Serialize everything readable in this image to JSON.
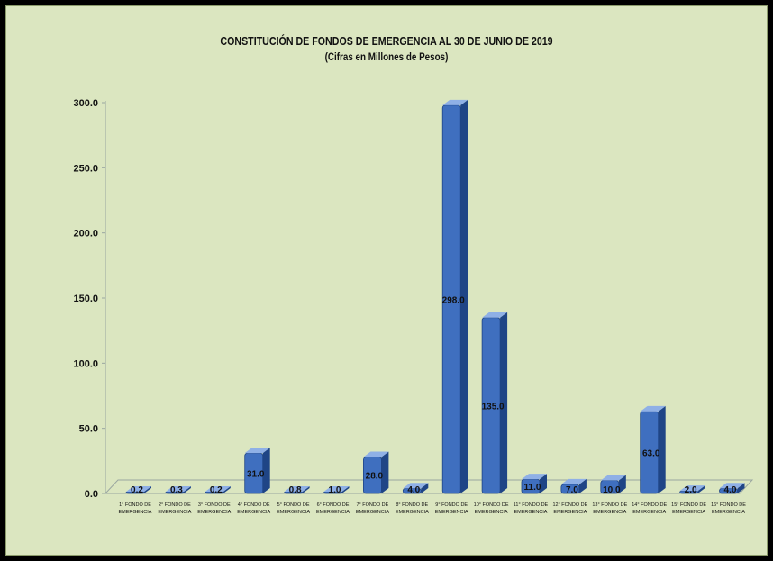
{
  "chart_data": {
    "type": "bar",
    "title": "CONSTITUCIÓN DE FONDOS DE EMERGENCIA AL 30 DE JUNIO DE 2019",
    "subtitle": "(Cifras en Millones de Pesos)",
    "xlabel": "",
    "ylabel": "",
    "ylim": [
      0,
      300
    ],
    "yticks": [
      "0.0",
      "50.0",
      "100.0",
      "150.0",
      "200.0",
      "250.0",
      "300.0"
    ],
    "ytick_values": [
      0,
      50,
      100,
      150,
      200,
      250,
      300
    ],
    "grid": false,
    "categories": [
      [
        "1° FONDO DE",
        "EMERGENCIA"
      ],
      [
        "2° FONDO DE",
        "EMERGENCIA"
      ],
      [
        "3° FONDO DE",
        "EMERGENCIA"
      ],
      [
        "4° FONDO DE",
        "EMERGENCIA"
      ],
      [
        "5° FONDO DE",
        "EMERGENCIA"
      ],
      [
        "6° FONDO DE",
        "EMERGENCIA"
      ],
      [
        "7° FONDO DE",
        "EMERGENCIA"
      ],
      [
        "8° FONDO DE",
        "EMERGENCIA"
      ],
      [
        "9° FONDO DE",
        "EMERGENCIA"
      ],
      [
        "10° FONDO DE",
        "EMERGENCIA"
      ],
      [
        "11° FONDO DE",
        "EMERGENCIA"
      ],
      [
        "12° FONDO DE",
        "EMERGENCIA"
      ],
      [
        "13° FONDO DE",
        "EMERGENCIA"
      ],
      [
        "14° FONDO DE",
        "EMERGENCIA"
      ],
      [
        "15° FONDO DE",
        "EMERGENCIA"
      ],
      [
        "16° FONDO DE",
        "EMERGENCIA"
      ]
    ],
    "values": [
      0.2,
      0.3,
      0.2,
      31.0,
      0.8,
      1.0,
      28.0,
      4.0,
      298.0,
      135.0,
      11.0,
      7.0,
      10.0,
      63.0,
      2.0,
      4.0
    ],
    "data_labels": [
      "0.2",
      "0.3",
      "0.2",
      "31.0",
      "0.8",
      "1.0",
      "28.0",
      "4.0",
      "298.0",
      "135.0",
      "11.0",
      "7.0",
      "10.0",
      "63.0",
      "2.0",
      "4.0"
    ],
    "bar_color": "#3f6fbf",
    "bar_dark": "#1f4586",
    "bar_light": "#8fb0e6",
    "background_color": "#dbe6c0"
  }
}
